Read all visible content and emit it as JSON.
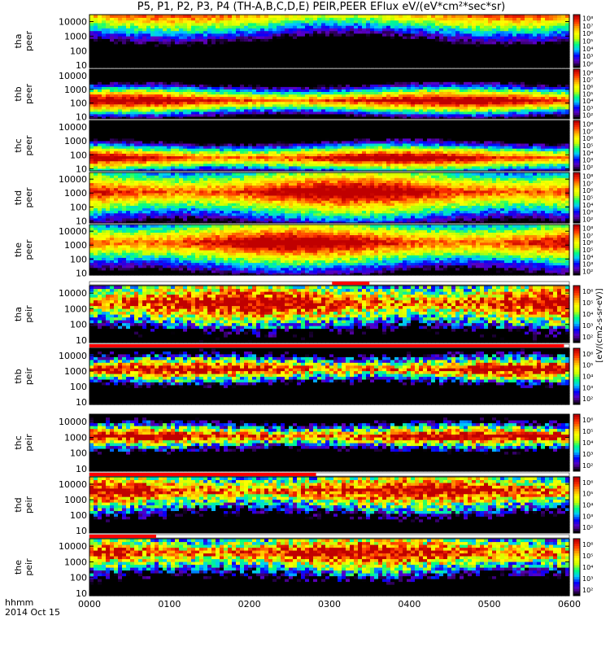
{
  "chart_data": {
    "type": "heatmap",
    "title": "P5, P1, P2, P3, P4 (TH-A,B,C,D,E) PEIR,PEER EFlux eV/(eV*cm²*sec*sr)",
    "date_label": "hhmm\n2014 Oct 15",
    "x_axis": {
      "label": "hhmm",
      "date": "2014 Oct 15",
      "ticks": [
        "0000",
        "0100",
        "0200",
        "0300",
        "0400",
        "0500",
        "0600"
      ],
      "range": [
        "0000",
        "0600"
      ]
    },
    "y_axis": {
      "scale": "log",
      "unit": "eV",
      "ticks": [
        "10",
        "100",
        "1000",
        "10000"
      ],
      "range": [
        7,
        30000
      ]
    },
    "colorbar": {
      "scale": "log",
      "label": "[eV/(cm2-s-sr-eV)]",
      "ticks_electron": [
        "10²",
        "10³",
        "10⁴",
        "10⁵",
        "10⁶",
        "10⁷",
        "10⁸"
      ],
      "ticks_ion": [
        "10²",
        "10³",
        "10⁴",
        "10⁵",
        "10⁶"
      ],
      "colors": [
        "#000000",
        "#6000c0",
        "#0000ff",
        "#00c8ff",
        "#00ff80",
        "#c8ff00",
        "#ffff00",
        "#ffa000",
        "#ff3000",
        "#c00000"
      ]
    },
    "panels": [
      {
        "id": "tha",
        "label": [
          "tha",
          "peer"
        ],
        "species": "electron",
        "band": [
          4,
          6
        ]
      },
      {
        "id": "thb",
        "label": [
          "thb",
          "peer"
        ],
        "species": "electron",
        "band": [
          1.8,
          2.6
        ]
      },
      {
        "id": "thc",
        "label": [
          "thc",
          "peer"
        ],
        "species": "electron",
        "band": [
          1.4,
          2.2
        ]
      },
      {
        "id": "thd",
        "label": [
          "thd",
          "peer"
        ],
        "species": "electron",
        "band": [
          2,
          4.2
        ]
      },
      {
        "id": "the",
        "label": [
          "the",
          "peer"
        ],
        "species": "electron",
        "band": [
          2.2,
          4.2
        ]
      },
      {
        "id": "tha_i",
        "label": [
          "tha",
          "peir"
        ],
        "species": "ion",
        "band": [
          2.6,
          4.2
        ]
      },
      {
        "id": "thb_i",
        "label": [
          "thb",
          "peir"
        ],
        "species": "ion",
        "band": [
          2.9,
          3.4
        ]
      },
      {
        "id": "thc_i",
        "label": [
          "thc",
          "peir"
        ],
        "species": "ion",
        "band": [
          2.9,
          3.3
        ]
      },
      {
        "id": "thd_i",
        "label": [
          "thd",
          "peir"
        ],
        "species": "ion",
        "band": [
          3,
          4.2
        ]
      },
      {
        "id": "the_i",
        "label": [
          "the",
          "peir"
        ],
        "species": "ion",
        "band": [
          3,
          4.2
        ]
      }
    ],
    "mode_bars": [
      {
        "panel": "tha_i",
        "color": "#ff0000",
        "start": "0302",
        "end": "0330"
      },
      {
        "panel": "thb_i",
        "color": "#ff0000",
        "start": "0000",
        "end": "0556"
      },
      {
        "panel": "thd_i",
        "color": "#ff0000",
        "start": "0000",
        "end": "0250"
      },
      {
        "panel": "the_i",
        "color": "#ff0000",
        "start": "0000",
        "end": "0050"
      }
    ]
  }
}
